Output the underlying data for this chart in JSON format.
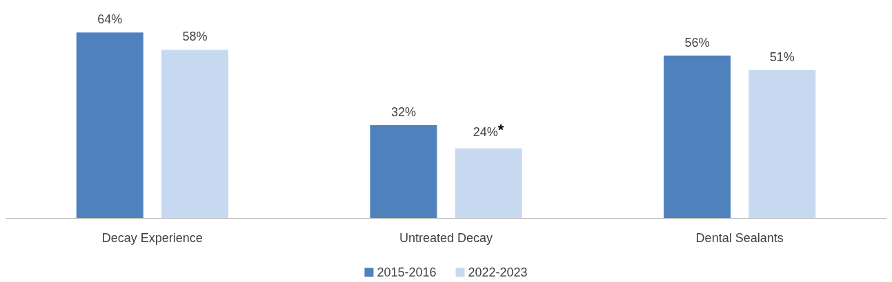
{
  "chart_data": {
    "type": "bar",
    "categories": [
      "Decay Experience",
      "Untreated Decay",
      "Dental Sealants"
    ],
    "series": [
      {
        "name": "2015-2016",
        "color": "#4f81bd",
        "values": [
          64,
          32,
          56
        ],
        "value_labels": [
          "64%",
          "32%",
          "56%"
        ]
      },
      {
        "name": "2022-2023",
        "color": "#c6d9f0",
        "values": [
          58,
          24,
          51
        ],
        "value_labels": [
          "58%",
          "24%*",
          "51%"
        ]
      }
    ],
    "legend": "bottom"
  }
}
